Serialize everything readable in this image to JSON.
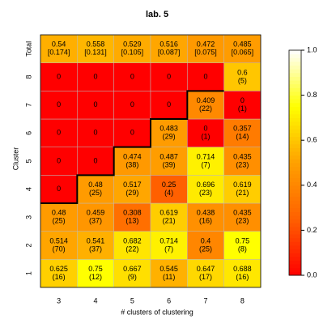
{
  "chart_data": {
    "type": "heatmap",
    "title": "lab. 5",
    "x_label": "# clusters of clustering",
    "y_label": "Cluster",
    "categories": [
      "3",
      "4",
      "5",
      "6",
      "7",
      "8"
    ],
    "y_categories": [
      "1",
      "2",
      "3",
      "4",
      "5",
      "6",
      "7",
      "8",
      "Total"
    ],
    "values": [
      [
        0.625,
        0.75,
        0.667,
        0.545,
        0.647,
        0.688
      ],
      [
        0.514,
        0.541,
        0.682,
        0.714,
        0.4,
        0.75
      ],
      [
        0.48,
        0.459,
        0.308,
        0.619,
        0.438,
        0.435
      ],
      [
        0,
        0.48,
        0.517,
        0.25,
        0.696,
        0.619
      ],
      [
        0,
        0,
        0.474,
        0.487,
        0.714,
        0.435
      ],
      [
        0,
        0,
        0,
        0.483,
        0,
        0.357
      ],
      [
        0,
        0,
        0,
        0,
        0.409,
        0
      ],
      [
        0,
        0,
        0,
        0,
        0,
        0.6
      ],
      [
        0.54,
        0.558,
        0.529,
        0.516,
        0.472,
        0.485
      ]
    ],
    "cell_labels": [
      [
        "(16)",
        "(12)",
        "(9)",
        "(11)",
        "(17)",
        "(16)"
      ],
      [
        "(70)",
        "(37)",
        "(22)",
        "(7)",
        "(25)",
        "(8)"
      ],
      [
        "(25)",
        "(37)",
        "(13)",
        "(21)",
        "(16)",
        "(23)"
      ],
      [
        null,
        "(25)",
        "(29)",
        "(4)",
        "(23)",
        "(21)"
      ],
      [
        null,
        null,
        "(38)",
        "(39)",
        "(7)",
        "(23)"
      ],
      [
        null,
        null,
        null,
        "(29)",
        "(1)",
        "(14)"
      ],
      [
        null,
        null,
        null,
        null,
        "(22)",
        "(1)"
      ],
      [
        null,
        null,
        null,
        null,
        null,
        "(5)"
      ],
      [
        "[0.174]",
        "[0.131]",
        "[0.105]",
        "[0.087]",
        "[0.075]",
        "[0.065]"
      ]
    ],
    "colormap": [
      "#ff0000",
      "#ff6000",
      "#ffa000",
      "#ffff00",
      "#ffffff"
    ],
    "clim": [
      0,
      1
    ],
    "cticks": [
      {
        "value": 0,
        "label": "0.0"
      },
      0.2,
      0.4,
      0.6,
      0.8,
      {
        "value": 1,
        "label": "1.0"
      }
    ]
  }
}
